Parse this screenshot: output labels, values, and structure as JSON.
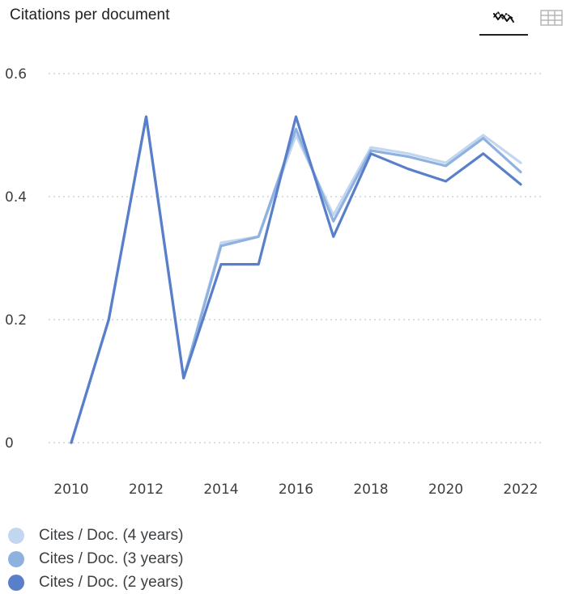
{
  "header": {
    "title": "Citations per document",
    "chart_view_icon": "line-chart-icon",
    "table_view_icon": "table-grid-icon"
  },
  "colors": {
    "series_4y": "#c2d7ef",
    "series_3y": "#8fb1e0",
    "series_2y": "#5a7fca",
    "grid": "#c8c8c8"
  },
  "chart_data": {
    "type": "line",
    "title": "Citations per document",
    "x": [
      2010,
      2011,
      2012,
      2013,
      2014,
      2015,
      2016,
      2017,
      2018,
      2019,
      2020,
      2021,
      2022
    ],
    "series": [
      {
        "name": "Cites / Doc. (4 years)",
        "color": "#c2d7ef",
        "values": [
          0,
          0.2,
          0.53,
          0.105,
          0.325,
          0.335,
          0.5,
          0.37,
          0.48,
          0.47,
          0.455,
          0.5,
          0.455
        ]
      },
      {
        "name": "Cites / Doc. (3 years)",
        "color": "#8fb1e0",
        "values": [
          0,
          0.2,
          0.53,
          0.105,
          0.32,
          0.335,
          0.51,
          0.36,
          0.475,
          0.465,
          0.45,
          0.495,
          0.44
        ]
      },
      {
        "name": "Cites / Doc. (2 years)",
        "color": "#5a7fca",
        "values": [
          0,
          0.2,
          0.53,
          0.105,
          0.29,
          0.29,
          0.53,
          0.335,
          0.47,
          0.445,
          0.425,
          0.47,
          0.42
        ]
      }
    ],
    "x_ticks": [
      "2010",
      "2012",
      "2014",
      "2016",
      "2018",
      "2020",
      "2022"
    ],
    "y_ticks": [
      "0",
      "0.2",
      "0.4",
      "0.6"
    ],
    "ylim": [
      0,
      0.6
    ],
    "xlim": [
      2010,
      2022
    ],
    "grid": true,
    "grid_style": "dotted horizontal",
    "legend_position": "bottom-left"
  },
  "legend": {
    "items": [
      {
        "label": "Cites / Doc. (4 years)",
        "color": "#c2d7ef"
      },
      {
        "label": "Cites / Doc. (3 years)",
        "color": "#8fb1e0"
      },
      {
        "label": "Cites / Doc. (2 years)",
        "color": "#5a7fca"
      }
    ]
  }
}
